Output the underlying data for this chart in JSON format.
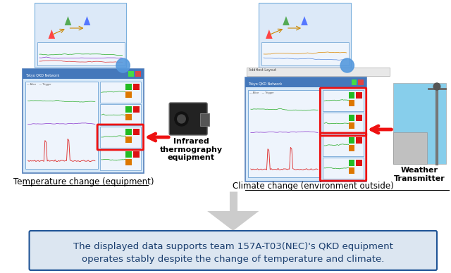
{
  "label_left": "Temperature change (equipment)",
  "label_right": "Climate change (environment outside)",
  "infrared_label": "Infrared\nthermography\nequipment",
  "weather_label": "Weather\nTransmitter",
  "bottom_line1": "The displayed data supports team 157A-T03(NEC)'s QKD equipment",
  "bottom_line2": "operates stably despite the change of temperature and climate.",
  "text_blue": "#1a3e6e",
  "border_blue": "#1f5496",
  "bg_box": "#dce6f1",
  "red": "#ee1111",
  "white": "#ffffff",
  "bg": "#ffffff",
  "panel_bg": "#d6e8f8",
  "panel_border": "#5580bb",
  "graph_bg": "#eef4fc",
  "screen_blue": "#7aaad8",
  "title_bar": "#4478bb",
  "green": "#22aa22",
  "orange": "#dd7700",
  "sky_blue": "#87ceeb",
  "black": "#000000"
}
